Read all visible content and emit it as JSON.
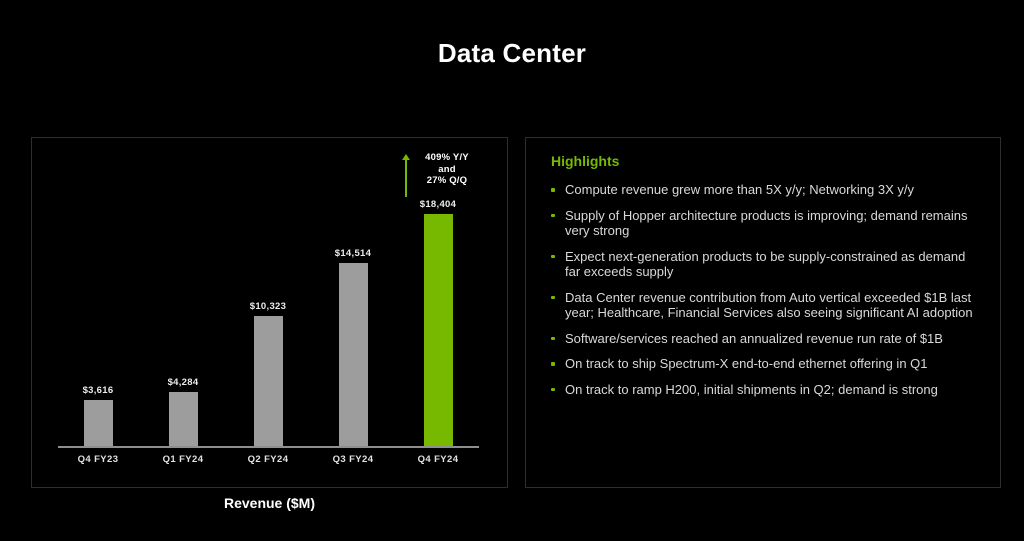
{
  "slide": {
    "title": "Data Center",
    "background_color": "#000000",
    "accent_green": "#76b900",
    "panel_border_color": "#2e2e2e"
  },
  "chart_data": {
    "type": "bar",
    "title": "Revenue ($M)",
    "categories": [
      "Q4 FY23",
      "Q1 FY24",
      "Q2 FY24",
      "Q3 FY24",
      "Q4 FY24"
    ],
    "values": [
      3616,
      4284,
      10323,
      14514,
      18404
    ],
    "value_labels": [
      "$3,616",
      "$4,284",
      "$10,323",
      "$14,514",
      "$18,404"
    ],
    "bar_colors": [
      "#9d9d9d",
      "#9d9d9d",
      "#9d9d9d",
      "#9d9d9d",
      "#76b900"
    ],
    "highlight_index": 4,
    "gray_bar_color": "#9d9d9d",
    "highlight_bar_color": "#76b900",
    "annotation": {
      "lines": [
        "409% Y/Y",
        "and",
        "27% Q/Q"
      ],
      "arrow": "up",
      "arrow_color": "#76b900"
    },
    "xlabel": "",
    "ylabel": "Revenue ($M)",
    "ylim": [
      0,
      19000
    ],
    "grid": false,
    "legend": false
  },
  "highlights": {
    "title": "Highlights",
    "bullet_color": "#76b900",
    "items": [
      "Compute revenue grew more than 5X y/y; Networking 3X y/y",
      "Supply of Hopper architecture products is improving; demand remains very strong",
      "Expect next-generation products to be supply-constrained as demand far exceeds supply",
      "Data Center revenue contribution from Auto vertical exceeded $1B last year; Healthcare, Financial Services also seeing significant AI adoption",
      "Software/services reached an annualized revenue run rate of $1B",
      "On track to ship Spectrum-X end-to-end ethernet offering in Q1",
      "On track to ramp H200, initial shipments in Q2; demand is strong"
    ]
  }
}
